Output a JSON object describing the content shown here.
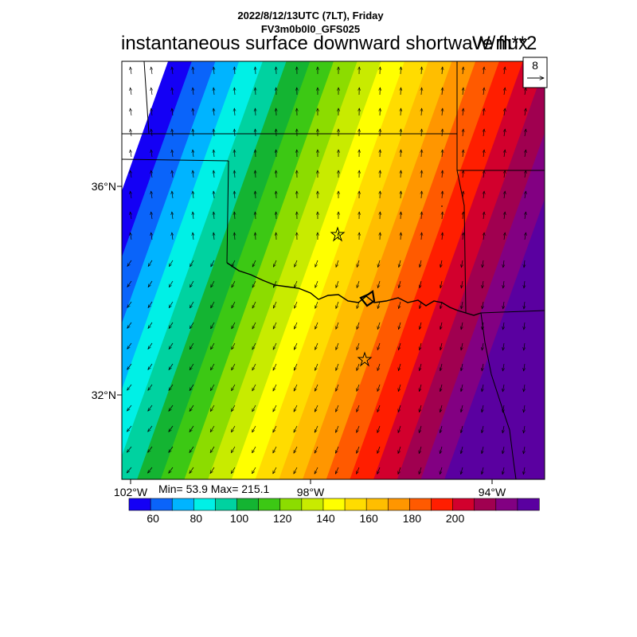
{
  "header": {
    "line1": "2022/8/12/13UTC (7LT), Friday",
    "line2": "FV3m0b0l0_GFS025",
    "title": "instantaneous surface downward shortwave flux",
    "units": "W/m**2"
  },
  "vector_reference": {
    "value": "8"
  },
  "axes": {
    "lat_labels": [
      "36°N",
      "32°N"
    ],
    "lon_labels": [
      "102°W",
      "98°W",
      "94°W"
    ]
  },
  "stats": {
    "text": "Min= 53.9 Max= 215.1"
  },
  "colorbar": {
    "tick_labels": [
      "60",
      "80",
      "100",
      "120",
      "140",
      "160",
      "180",
      "200"
    ],
    "colors": [
      "#1400f5",
      "#0a64fa",
      "#00b4ff",
      "#00f0e6",
      "#00d2a0",
      "#14b432",
      "#3cc814",
      "#8cdc00",
      "#c8eb00",
      "#ffff00",
      "#ffdc00",
      "#ffbe00",
      "#ff9600",
      "#ff5a00",
      "#ff1e00",
      "#d2002d",
      "#a00050",
      "#820082",
      "#5a00a0"
    ]
  },
  "markers": {
    "cities": [
      "star",
      "star"
    ]
  }
}
